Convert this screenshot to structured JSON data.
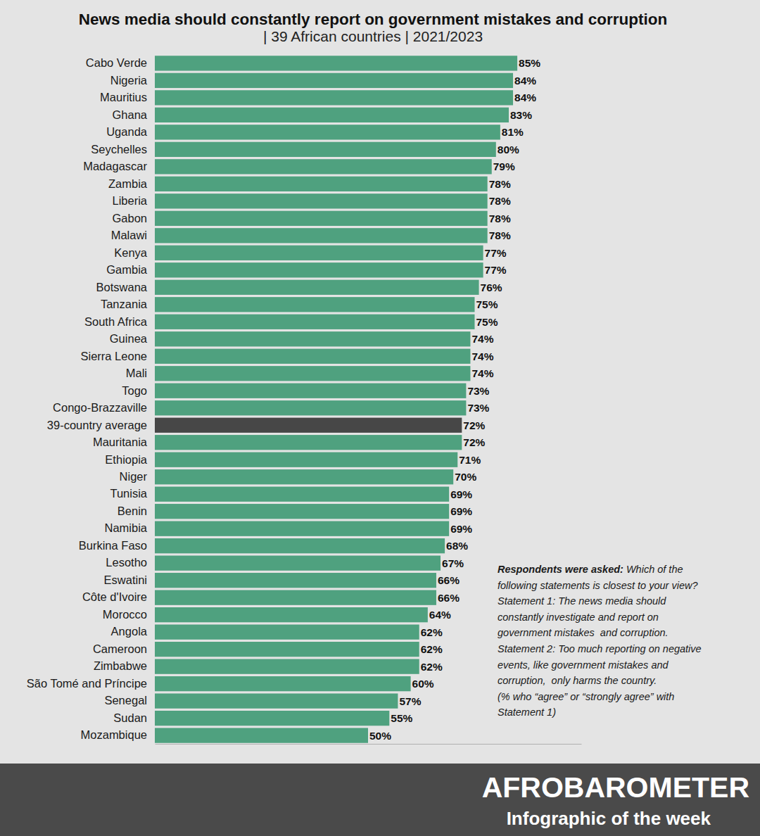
{
  "chart_data": {
    "type": "bar",
    "orientation": "horizontal",
    "title": "News media should constantly report on government mistakes and corruption",
    "subtitle": "| 39 African countries | 2021/2023",
    "categories": [
      "Cabo Verde",
      "Nigeria",
      "Mauritius",
      "Ghana",
      "Uganda",
      "Seychelles",
      "Madagascar",
      "Zambia",
      "Liberia",
      "Gabon",
      "Malawi",
      "Kenya",
      "Gambia",
      "Botswana",
      "Tanzania",
      "South Africa",
      "Guinea",
      "Sierra Leone",
      "Mali",
      "Togo",
      "Congo-Brazzaville",
      "39-country average",
      "Mauritania",
      "Ethiopia",
      "Niger",
      "Tunisia",
      "Benin",
      "Namibia",
      "Burkina Faso",
      "Lesotho",
      "Eswatini",
      "Côte d'Ivoire",
      "Morocco",
      "Angola",
      "Cameroon",
      "Zimbabwe",
      "São Tomé and Príncipe",
      "Senegal",
      "Sudan",
      "Mozambique"
    ],
    "values": [
      85,
      84,
      84,
      83,
      81,
      80,
      79,
      78,
      78,
      78,
      78,
      77,
      77,
      76,
      75,
      75,
      74,
      74,
      74,
      73,
      73,
      72,
      72,
      71,
      70,
      69,
      69,
      69,
      68,
      67,
      66,
      66,
      64,
      62,
      62,
      62,
      60,
      57,
      55,
      50
    ],
    "value_labels": [
      "85%",
      "84%",
      "84%",
      "83%",
      "81%",
      "80%",
      "79%",
      "78%",
      "78%",
      "78%",
      "78%",
      "77%",
      "77%",
      "76%",
      "75%",
      "75%",
      "74%",
      "74%",
      "74%",
      "73%",
      "73%",
      "72%",
      "72%",
      "71%",
      "70%",
      "69%",
      "69%",
      "69%",
      "68%",
      "67%",
      "66%",
      "66%",
      "64%",
      "62%",
      "62%",
      "62%",
      "60%",
      "57%",
      "55%",
      "50%"
    ],
    "colors": [
      "#4fa17f",
      "#4fa17f",
      "#4fa17f",
      "#4fa17f",
      "#4fa17f",
      "#4fa17f",
      "#4fa17f",
      "#4fa17f",
      "#4fa17f",
      "#4fa17f",
      "#4fa17f",
      "#4fa17f",
      "#4fa17f",
      "#4fa17f",
      "#4fa17f",
      "#4fa17f",
      "#4fa17f",
      "#4fa17f",
      "#4fa17f",
      "#4fa17f",
      "#4fa17f",
      "#474747",
      "#4fa17f",
      "#4fa17f",
      "#4fa17f",
      "#4fa17f",
      "#4fa17f",
      "#4fa17f",
      "#4fa17f",
      "#4fa17f",
      "#4fa17f",
      "#4fa17f",
      "#4fa17f",
      "#4fa17f",
      "#4fa17f",
      "#4fa17f",
      "#4fa17f",
      "#4fa17f",
      "#4fa17f",
      "#4fa17f"
    ],
    "xlim": [
      0,
      100
    ],
    "data_labels": true,
    "tick_labels": "y",
    "grid": false,
    "annotation": {
      "label": "Respondents were asked:",
      "lines": [
        " Which of the",
        "following statements is closest to your view?",
        "Statement 1: The news media should",
        "constantly investigate and report on",
        "government mistakes  and corruption.",
        "Statement 2: Too much reporting on negative",
        "events, like government mistakes and",
        "corruption,  only harms the country.",
        "(% who “agree” or “strongly agree” with",
        "Statement 1)"
      ]
    },
    "footer": {
      "brand": "AFROBAROMETER",
      "caption": "Infographic of the week"
    }
  }
}
